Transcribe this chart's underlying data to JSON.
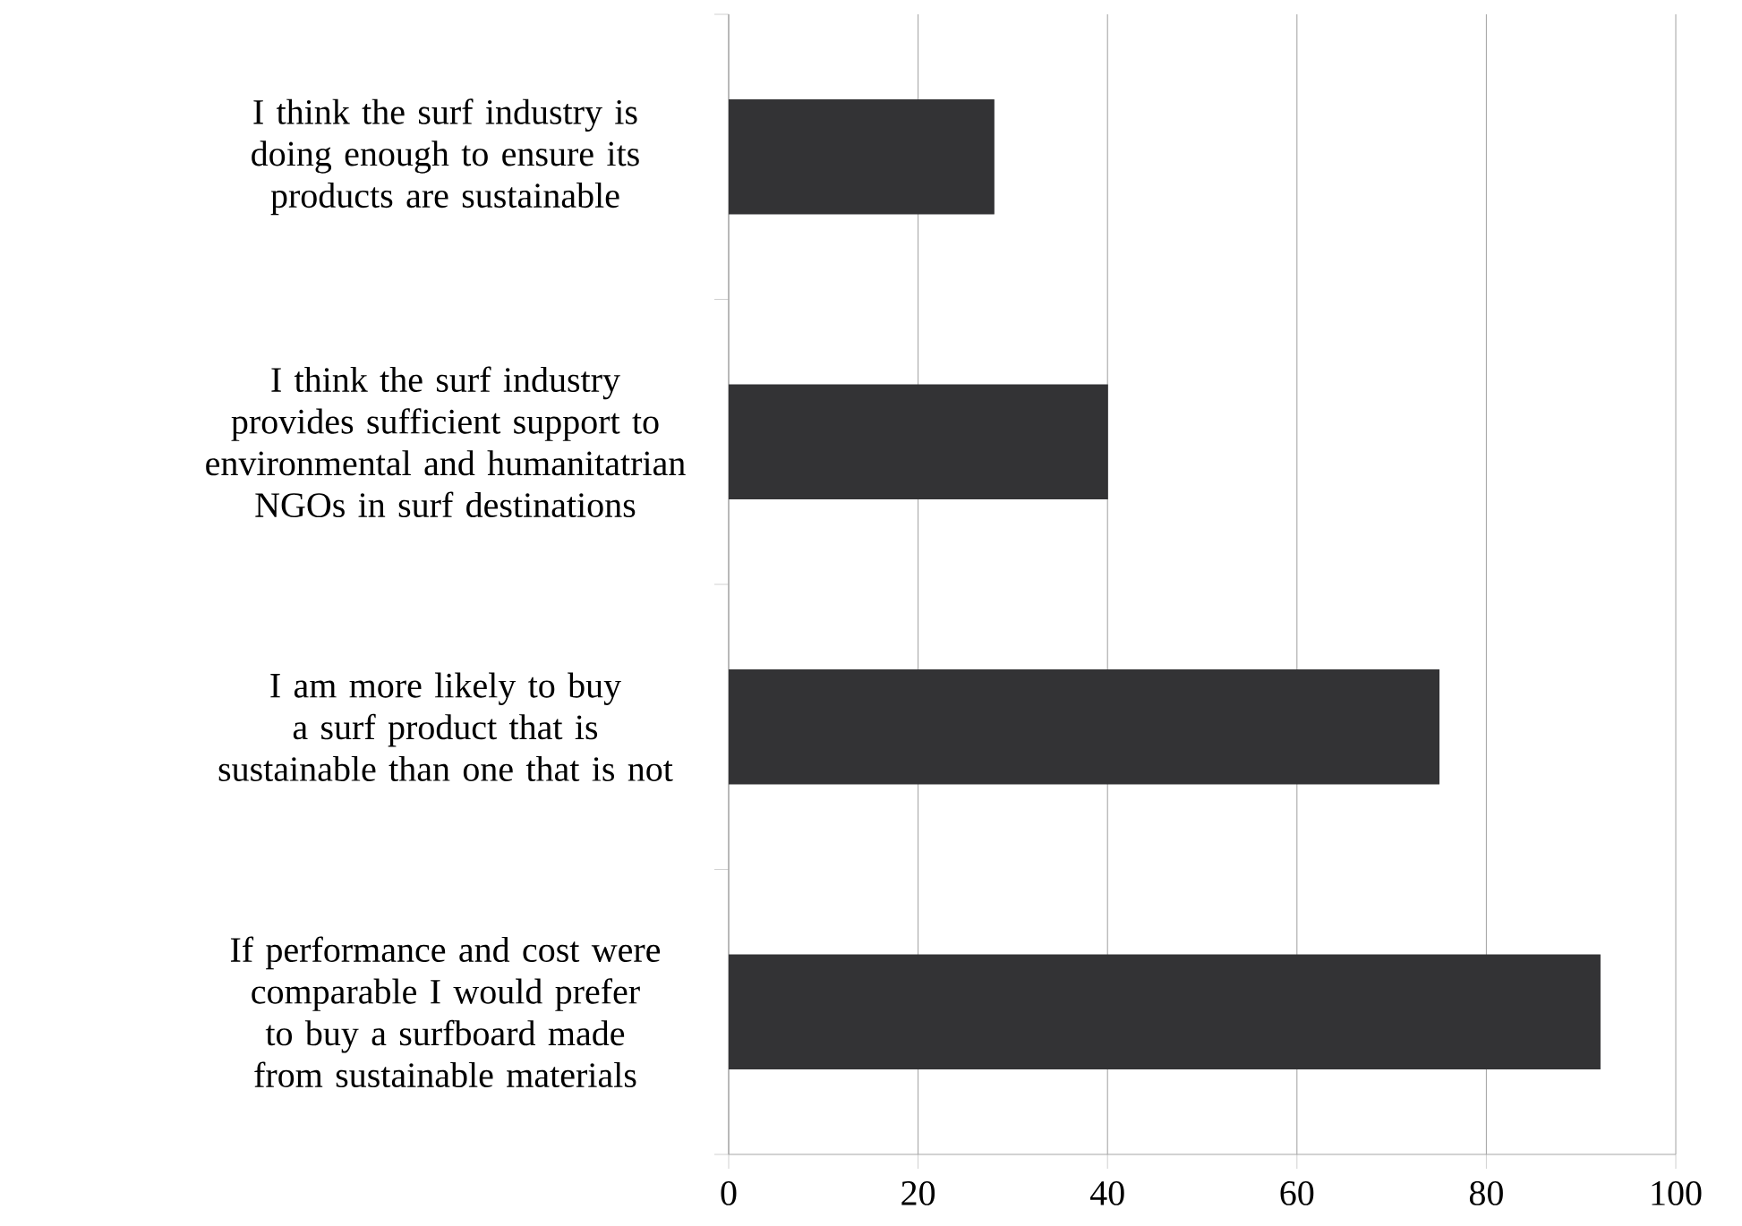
{
  "chart_data": {
    "type": "bar",
    "orientation": "horizontal",
    "categories": [
      "I think the surf industry is doing enough to ensure its products are sustainable",
      "I think the surf industry provides sufficient support to environmental and humanitatrian NGOs in surf destinations",
      "I am more likely to buy a surf product that is sustainable than one that is not",
      "If performance and cost were comparable I would prefer to buy a surfboard made from sustainable materials"
    ],
    "values": [
      28,
      40,
      75,
      92
    ],
    "color": "#333335",
    "xlim": [
      0,
      100
    ],
    "xticks": [
      0,
      20,
      40,
      60,
      80,
      100
    ],
    "grid": "x"
  }
}
